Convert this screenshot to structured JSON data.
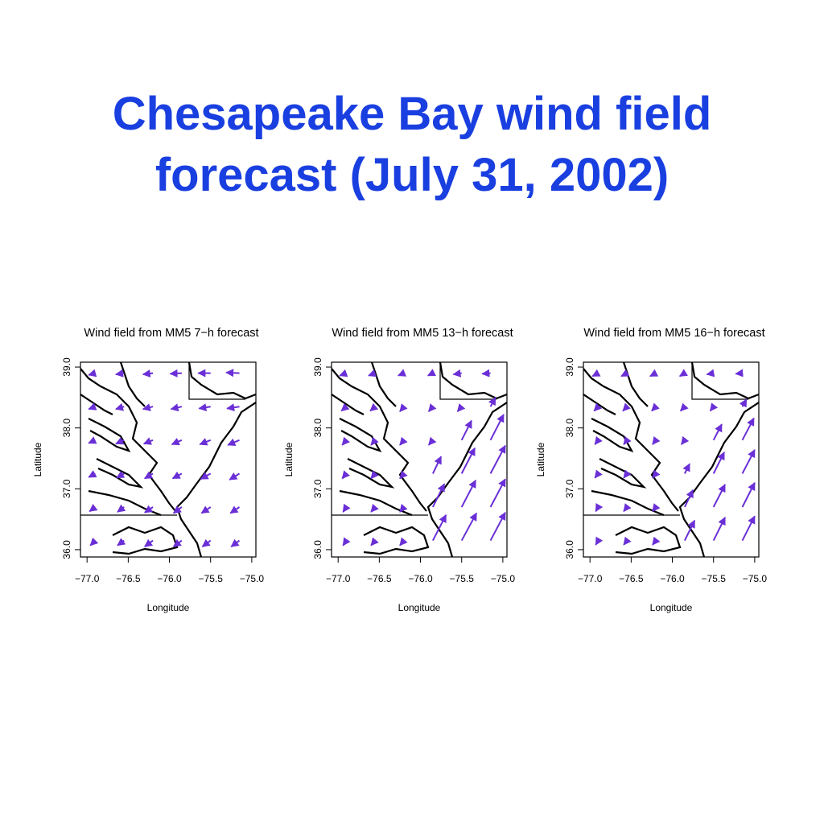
{
  "title": "Chesapeake Bay wind field forecast (July 31, 2002)",
  "chart_data": [
    {
      "type": "quiver",
      "title": "Wind field from MM5 7−h forecast",
      "xlabel": "Longitude",
      "ylabel": "Latitude",
      "color": "#6a2fd6",
      "xlim": [
        -77.08,
        -74.95
      ],
      "ylim": [
        35.88,
        39.08
      ],
      "xticks": [
        {
          "value": -77,
          "label": "−77.0"
        },
        {
          "value": -76.5,
          "label": "−76.5"
        },
        {
          "value": -76,
          "label": "−76.0"
        },
        {
          "value": -75.5,
          "label": "−75.5"
        },
        {
          "value": -75,
          "label": "−75.0"
        }
      ],
      "yticks": [
        {
          "value": 36,
          "label": "36.0"
        },
        {
          "value": 37,
          "label": "37.0"
        },
        {
          "value": 38,
          "label": "38.0"
        },
        {
          "value": 39,
          "label": "39.0"
        }
      ],
      "x": [
        -76.9,
        -76.55,
        -76.2,
        -75.85,
        -75.5,
        -75.15,
        -76.9,
        -76.55,
        -76.2,
        -75.85,
        -75.5,
        -75.15,
        -76.9,
        -76.55,
        -76.2,
        -75.85,
        -75.5,
        -75.15,
        -76.9,
        -76.55,
        -76.2,
        -75.85,
        -75.5,
        -75.15,
        -76.9,
        -76.55,
        -76.2,
        -75.85,
        -75.5,
        -75.15,
        -76.9,
        -76.55,
        -76.2,
        -75.85,
        -75.5,
        -75.15
      ],
      "y": [
        36.15,
        36.15,
        36.15,
        36.15,
        36.15,
        36.15,
        36.7,
        36.7,
        36.7,
        36.7,
        36.7,
        36.7,
        37.25,
        37.25,
        37.25,
        37.25,
        37.25,
        37.25,
        37.8,
        37.8,
        37.8,
        37.8,
        37.8,
        37.8,
        38.35,
        38.35,
        38.35,
        38.35,
        38.35,
        38.35,
        38.9,
        38.9,
        38.9,
        38.9,
        38.9,
        38.9
      ],
      "u": [
        -0.06,
        -0.08,
        -0.1,
        -0.1,
        -0.1,
        -0.1,
        -0.07,
        -0.08,
        -0.1,
        -0.1,
        -0.11,
        -0.11,
        -0.08,
        -0.09,
        -0.1,
        -0.11,
        -0.12,
        -0.12,
        -0.08,
        -0.1,
        -0.11,
        -0.12,
        -0.13,
        -0.14,
        -0.08,
        -0.1,
        -0.12,
        -0.13,
        -0.14,
        -0.15,
        -0.08,
        -0.1,
        -0.12,
        -0.14,
        -0.15,
        -0.16
      ],
      "v": [
        -0.08,
        -0.08,
        -0.1,
        -0.1,
        -0.1,
        -0.1,
        -0.07,
        -0.08,
        -0.09,
        -0.1,
        -0.1,
        -0.1,
        -0.06,
        -0.07,
        -0.08,
        -0.08,
        -0.09,
        -0.1,
        -0.05,
        -0.06,
        -0.06,
        -0.07,
        -0.07,
        -0.08,
        -0.04,
        -0.04,
        -0.04,
        -0.04,
        -0.03,
        -0.03,
        -0.03,
        -0.02,
        -0.02,
        -0.01,
        0,
        0.01
      ]
    },
    {
      "type": "quiver",
      "title": "Wind field from MM5 13−h forecast",
      "xlabel": "Longitude",
      "ylabel": "Latitude",
      "color": "#6a2fd6",
      "xlim": [
        -77.08,
        -74.95
      ],
      "ylim": [
        35.88,
        39.08
      ],
      "xticks": [
        {
          "value": -77,
          "label": "−77.0"
        },
        {
          "value": -76.5,
          "label": "−76.5"
        },
        {
          "value": -76,
          "label": "−76.0"
        },
        {
          "value": -75.5,
          "label": "−75.5"
        },
        {
          "value": -75,
          "label": "−75.0"
        }
      ],
      "yticks": [
        {
          "value": 36,
          "label": "36.0"
        },
        {
          "value": 37,
          "label": "37.0"
        },
        {
          "value": 38,
          "label": "38.0"
        },
        {
          "value": 39,
          "label": "39.0"
        }
      ],
      "x": [
        -76.9,
        -76.55,
        -76.2,
        -75.85,
        -75.5,
        -75.15,
        -76.9,
        -76.55,
        -76.2,
        -75.85,
        -75.5,
        -75.15,
        -76.9,
        -76.55,
        -76.2,
        -75.85,
        -75.5,
        -75.15,
        -76.9,
        -76.55,
        -76.2,
        -75.85,
        -75.5,
        -75.15,
        -76.9,
        -76.55,
        -76.2,
        -75.85,
        -75.5,
        -75.15,
        -76.9,
        -76.55,
        -76.2,
        -75.85,
        -75.5,
        -75.15
      ],
      "y": [
        36.15,
        36.15,
        36.15,
        36.15,
        36.15,
        36.15,
        36.7,
        36.7,
        36.7,
        36.7,
        36.7,
        36.7,
        37.25,
        37.25,
        37.25,
        37.25,
        37.25,
        37.25,
        37.8,
        37.8,
        37.8,
        37.8,
        37.8,
        37.8,
        38.35,
        38.35,
        38.35,
        38.35,
        38.35,
        38.35,
        38.9,
        38.9,
        38.9,
        38.9,
        38.9,
        38.9
      ],
      "u": [
        -0.04,
        -0.05,
        -0.05,
        0.16,
        0.18,
        0.18,
        -0.04,
        -0.05,
        -0.05,
        0.14,
        0.17,
        0.18,
        -0.05,
        -0.05,
        -0.05,
        0.1,
        0.16,
        0.18,
        -0.05,
        -0.05,
        -0.05,
        -0.05,
        0.12,
        0.16,
        -0.06,
        -0.06,
        -0.05,
        -0.05,
        -0.05,
        0.06,
        -0.08,
        -0.08,
        -0.07,
        -0.06,
        -0.1,
        -0.1
      ],
      "v": [
        -0.08,
        -0.08,
        -0.08,
        0.42,
        0.45,
        0.46,
        -0.08,
        -0.08,
        -0.08,
        0.38,
        0.44,
        0.46,
        -0.08,
        -0.08,
        -0.08,
        0.28,
        0.42,
        0.46,
        -0.08,
        -0.08,
        -0.08,
        -0.08,
        0.32,
        0.42,
        -0.07,
        -0.07,
        -0.08,
        -0.08,
        -0.08,
        0.15,
        -0.04,
        -0.04,
        -0.04,
        -0.04,
        -0.02,
        -0.01
      ]
    },
    {
      "type": "quiver",
      "title": "Wind field from MM5 16−h forecast",
      "xlabel": "Longitude",
      "ylabel": "Latitude",
      "color": "#6a2fd6",
      "xlim": [
        -77.08,
        -74.95
      ],
      "ylim": [
        35.88,
        39.08
      ],
      "xticks": [
        {
          "value": -77,
          "label": "−77.0"
        },
        {
          "value": -76.5,
          "label": "−76.5"
        },
        {
          "value": -76,
          "label": "−76.0"
        },
        {
          "value": -75.5,
          "label": "−75.5"
        },
        {
          "value": -75,
          "label": "−75.0"
        }
      ],
      "yticks": [
        {
          "value": 36,
          "label": "36.0"
        },
        {
          "value": 37,
          "label": "37.0"
        },
        {
          "value": 38,
          "label": "38.0"
        },
        {
          "value": 39,
          "label": "39.0"
        }
      ],
      "x": [
        -76.9,
        -76.55,
        -76.2,
        -75.85,
        -75.5,
        -75.15,
        -76.9,
        -76.55,
        -76.2,
        -75.85,
        -75.5,
        -75.15,
        -76.9,
        -76.55,
        -76.2,
        -75.85,
        -75.5,
        -75.15,
        -76.9,
        -76.55,
        -76.2,
        -75.85,
        -75.5,
        -75.15,
        -76.9,
        -76.55,
        -76.2,
        -75.85,
        -75.5,
        -75.15,
        -76.9,
        -76.55,
        -76.2,
        -75.85,
        -75.5,
        -75.15
      ],
      "y": [
        36.15,
        36.15,
        36.15,
        36.15,
        36.15,
        36.15,
        36.7,
        36.7,
        36.7,
        36.7,
        36.7,
        36.7,
        37.25,
        37.25,
        37.25,
        37.25,
        37.25,
        37.25,
        37.8,
        37.8,
        37.8,
        37.8,
        37.8,
        37.8,
        38.35,
        38.35,
        38.35,
        38.35,
        38.35,
        38.35,
        38.9,
        38.9,
        38.9,
        38.9,
        38.9,
        38.9
      ],
      "u": [
        -0.03,
        -0.04,
        -0.04,
        0.12,
        0.14,
        0.15,
        -0.03,
        -0.04,
        -0.04,
        0.1,
        0.14,
        0.15,
        -0.04,
        -0.04,
        -0.04,
        0.06,
        0.13,
        0.15,
        -0.04,
        -0.04,
        -0.04,
        -0.04,
        0.1,
        0.14,
        -0.05,
        -0.05,
        -0.05,
        -0.05,
        -0.04,
        0.05,
        -0.07,
        -0.07,
        -0.07,
        -0.06,
        -0.08,
        -0.08
      ],
      "v": [
        -0.07,
        -0.07,
        -0.07,
        0.33,
        0.38,
        0.4,
        -0.07,
        -0.07,
        -0.07,
        0.28,
        0.37,
        0.4,
        -0.07,
        -0.07,
        -0.07,
        0.16,
        0.35,
        0.39,
        -0.07,
        -0.07,
        -0.07,
        -0.07,
        0.26,
        0.36,
        -0.07,
        -0.07,
        -0.07,
        -0.07,
        -0.07,
        0.12,
        -0.05,
        -0.05,
        -0.05,
        -0.05,
        -0.02,
        -0.01
      ]
    }
  ]
}
